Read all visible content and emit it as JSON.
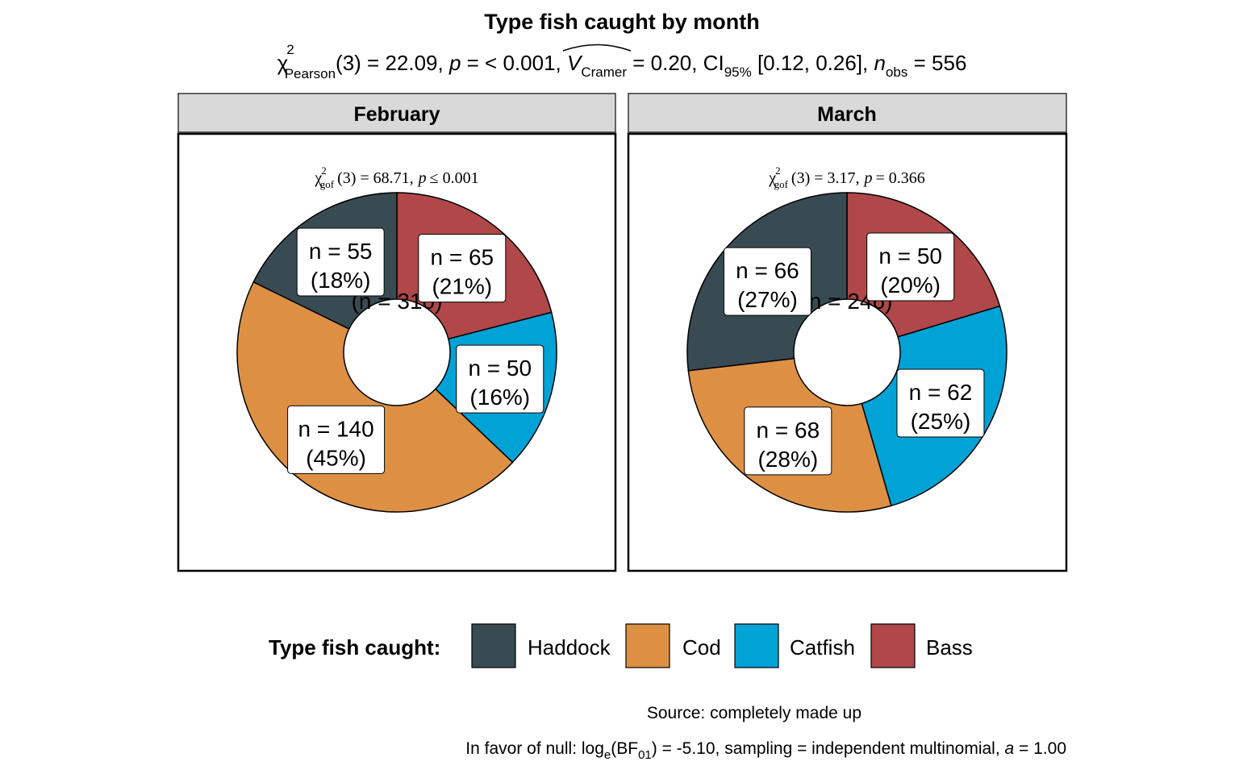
{
  "chart_data": {
    "type": "pie",
    "title": "Type fish caught by month",
    "subtitle": {
      "chi": "χ",
      "chi_sup": "2",
      "chi_sub": "Pearson",
      "df_value": "(3) = 22.09, ",
      "p_sym": "p",
      "p_value": " = < 0.001, ",
      "v_sym": "V",
      "v_sub": "Cramer",
      "v_value": " = 0.20, CI",
      "ci_sub": "95%",
      "ci_value": " [0.12, 0.26], ",
      "n_sym": "n",
      "n_sub": "obs",
      "n_value": " = 556"
    },
    "legend": {
      "title": "Type fish caught:",
      "position": "bottom",
      "items": [
        {
          "label": "Haddock",
          "color": "#384b53"
        },
        {
          "label": "Cod",
          "color": "#dd9044"
        },
        {
          "label": "Catfish",
          "color": "#01a2d6"
        },
        {
          "label": "Bass",
          "color": "#b04748"
        }
      ]
    },
    "panels": [
      {
        "label": "February",
        "total_label": "(n = 310)",
        "gof": {
          "chi": "χ",
          "sup": "2",
          "sub": "gof",
          "stat": "(3) = 68.71,",
          "p_sym": "p",
          "p_text": "≤ 0.001"
        },
        "slices": [
          {
            "category": "Bass",
            "n": 65,
            "pct": 21,
            "n_label": "n = 65",
            "pct_label": "(21%)"
          },
          {
            "category": "Catfish",
            "n": 50,
            "pct": 16,
            "n_label": "n = 50",
            "pct_label": "(16%)"
          },
          {
            "category": "Cod",
            "n": 140,
            "pct": 45,
            "n_label": "n = 140",
            "pct_label": "(45%)"
          },
          {
            "category": "Haddock",
            "n": 55,
            "pct": 18,
            "n_label": "n = 55",
            "pct_label": "(18%)"
          }
        ]
      },
      {
        "label": "March",
        "total_label": "(n = 246)",
        "gof": {
          "chi": "χ",
          "sup": "2",
          "sub": "gof",
          "stat": "(3) = 3.17,",
          "p_sym": "p",
          "p_text": "= 0.366"
        },
        "slices": [
          {
            "category": "Bass",
            "n": 50,
            "pct": 20,
            "n_label": "n = 50",
            "pct_label": "(20%)"
          },
          {
            "category": "Catfish",
            "n": 62,
            "pct": 25,
            "n_label": "n = 62",
            "pct_label": "(25%)"
          },
          {
            "category": "Cod",
            "n": 68,
            "pct": 28,
            "n_label": "n = 68",
            "pct_label": "(28%)"
          },
          {
            "category": "Haddock",
            "n": 66,
            "pct": 27,
            "n_label": "n = 66",
            "pct_label": "(27%)"
          }
        ]
      }
    ],
    "caption": {
      "source": "Source: completely made up",
      "bf_prefix": "In favor of null: log",
      "bf_sub_e": "e",
      "bf_open": "(BF",
      "bf_sub_01": "01",
      "bf_rest": ") = -5.10, sampling = independent multinomial, ",
      "a_sym": "a",
      "a_value": " = 1.00"
    }
  }
}
